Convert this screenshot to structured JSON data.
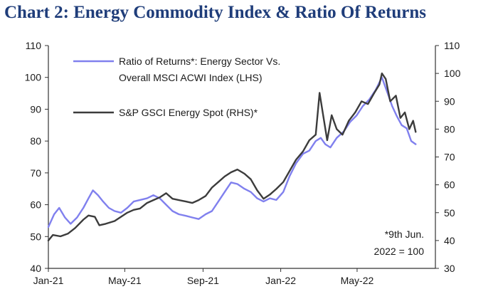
{
  "chart_data": {
    "type": "line",
    "title": "Chart 2: Energy Commodity Index & Ratio Of Returns",
    "xlabel": "",
    "ylabel_left": "",
    "ylabel_right": "",
    "x_ticks": [
      "Jan-21",
      "May-21",
      "Sep-21",
      "Jan-22",
      "May-22"
    ],
    "x_range": [
      "2021-01-01",
      "2022-09-01"
    ],
    "y_left_range": [
      40,
      110
    ],
    "y_left_ticks": [
      40,
      50,
      60,
      70,
      80,
      90,
      100,
      110
    ],
    "y_right_range": [
      30,
      110
    ],
    "y_right_ticks": [
      30,
      40,
      50,
      60,
      70,
      80,
      90,
      100,
      110
    ],
    "legend": {
      "placement": "top-left",
      "entries": [
        {
          "line1": "Ratio of Returns*: Energy Sector Vs.",
          "line2": "Overall MSCI ACWI Index (LHS)",
          "color": "#8080ee"
        },
        {
          "line1": "S&P GSCI Energy Spot (RHS)*",
          "line2": "",
          "color": "#3c3c3c"
        }
      ]
    },
    "note": {
      "line1": "*9th Jun.",
      "line2": "2022 = 100"
    },
    "grid": false,
    "series": [
      {
        "name": "Ratio of Returns*: Energy Sector Vs. Overall MSCI ACWI Index (LHS)",
        "axis": "left",
        "color": "#8080ee",
        "points": [
          [
            "2021-01-01",
            53
          ],
          [
            "2021-01-10",
            57
          ],
          [
            "2021-01-18",
            59
          ],
          [
            "2021-01-27",
            56
          ],
          [
            "2021-02-05",
            54
          ],
          [
            "2021-02-15",
            56
          ],
          [
            "2021-02-25",
            59
          ],
          [
            "2021-03-05",
            62
          ],
          [
            "2021-03-12",
            64.5
          ],
          [
            "2021-03-20",
            63
          ],
          [
            "2021-03-28",
            61
          ],
          [
            "2021-04-06",
            59
          ],
          [
            "2021-04-15",
            58
          ],
          [
            "2021-04-25",
            57.5
          ],
          [
            "2021-05-05",
            59
          ],
          [
            "2021-05-15",
            61
          ],
          [
            "2021-05-25",
            61.5
          ],
          [
            "2021-06-05",
            62
          ],
          [
            "2021-06-15",
            63
          ],
          [
            "2021-06-25",
            62
          ],
          [
            "2021-07-05",
            60
          ],
          [
            "2021-07-15",
            58
          ],
          [
            "2021-07-25",
            57
          ],
          [
            "2021-08-05",
            56.5
          ],
          [
            "2021-08-15",
            56
          ],
          [
            "2021-08-25",
            55.5
          ],
          [
            "2021-09-05",
            57
          ],
          [
            "2021-09-15",
            58
          ],
          [
            "2021-09-25",
            61
          ],
          [
            "2021-10-05",
            64
          ],
          [
            "2021-10-15",
            67
          ],
          [
            "2021-10-25",
            66.5
          ],
          [
            "2021-11-05",
            65
          ],
          [
            "2021-11-15",
            64
          ],
          [
            "2021-11-25",
            62
          ],
          [
            "2021-12-05",
            61
          ],
          [
            "2021-12-15",
            62
          ],
          [
            "2021-12-25",
            61.5
          ],
          [
            "2022-01-05",
            64
          ],
          [
            "2022-01-15",
            69
          ],
          [
            "2022-01-25",
            73
          ],
          [
            "2022-02-05",
            76
          ],
          [
            "2022-02-15",
            77
          ],
          [
            "2022-02-25",
            80
          ],
          [
            "2022-03-05",
            81
          ],
          [
            "2022-03-12",
            79
          ],
          [
            "2022-03-20",
            78
          ],
          [
            "2022-03-30",
            81
          ],
          [
            "2022-04-10",
            83
          ],
          [
            "2022-04-20",
            86
          ],
          [
            "2022-04-30",
            88
          ],
          [
            "2022-05-10",
            91
          ],
          [
            "2022-05-20",
            93
          ],
          [
            "2022-05-30",
            96
          ],
          [
            "2022-06-09",
            100
          ],
          [
            "2022-06-18",
            95
          ],
          [
            "2022-06-25",
            91
          ],
          [
            "2022-07-02",
            88
          ],
          [
            "2022-07-10",
            85
          ],
          [
            "2022-07-18",
            84
          ],
          [
            "2022-07-25",
            80
          ],
          [
            "2022-08-01",
            79
          ]
        ]
      },
      {
        "name": "S&P GSCI Energy Spot (RHS)*",
        "axis": "right",
        "color": "#3c3c3c",
        "points": [
          [
            "2021-01-01",
            40
          ],
          [
            "2021-01-08",
            42
          ],
          [
            "2021-01-20",
            41.5
          ],
          [
            "2021-02-01",
            42.5
          ],
          [
            "2021-02-12",
            44.5
          ],
          [
            "2021-02-25",
            47.5
          ],
          [
            "2021-03-05",
            49
          ],
          [
            "2021-03-15",
            48.5
          ],
          [
            "2021-03-22",
            45.5
          ],
          [
            "2021-04-01",
            46
          ],
          [
            "2021-04-15",
            47
          ],
          [
            "2021-04-25",
            48.5
          ],
          [
            "2021-05-05",
            50
          ],
          [
            "2021-05-15",
            51
          ],
          [
            "2021-05-25",
            51.5
          ],
          [
            "2021-06-05",
            53.5
          ],
          [
            "2021-06-15",
            54.5
          ],
          [
            "2021-06-25",
            55.5
          ],
          [
            "2021-07-05",
            57
          ],
          [
            "2021-07-15",
            55
          ],
          [
            "2021-07-25",
            54.5
          ],
          [
            "2021-08-05",
            54
          ],
          [
            "2021-08-15",
            53.5
          ],
          [
            "2021-08-25",
            54.5
          ],
          [
            "2021-09-05",
            56
          ],
          [
            "2021-09-15",
            59
          ],
          [
            "2021-09-25",
            61
          ],
          [
            "2021-10-05",
            63
          ],
          [
            "2021-10-15",
            64.5
          ],
          [
            "2021-10-25",
            65.5
          ],
          [
            "2021-11-05",
            64
          ],
          [
            "2021-11-15",
            62
          ],
          [
            "2021-11-25",
            58
          ],
          [
            "2021-12-05",
            55
          ],
          [
            "2021-12-15",
            56.5
          ],
          [
            "2021-12-25",
            58.5
          ],
          [
            "2022-01-05",
            61
          ],
          [
            "2022-01-15",
            65
          ],
          [
            "2022-01-25",
            69
          ],
          [
            "2022-02-05",
            72
          ],
          [
            "2022-02-15",
            76
          ],
          [
            "2022-02-25",
            78
          ],
          [
            "2022-03-03",
            93
          ],
          [
            "2022-03-08",
            86
          ],
          [
            "2022-03-15",
            76
          ],
          [
            "2022-03-22",
            85
          ],
          [
            "2022-03-30",
            80
          ],
          [
            "2022-04-08",
            78
          ],
          [
            "2022-04-18",
            83
          ],
          [
            "2022-04-28",
            86
          ],
          [
            "2022-05-08",
            90
          ],
          [
            "2022-05-18",
            89
          ],
          [
            "2022-05-28",
            93
          ],
          [
            "2022-06-05",
            96
          ],
          [
            "2022-06-09",
            100
          ],
          [
            "2022-06-15",
            98
          ],
          [
            "2022-06-22",
            90
          ],
          [
            "2022-07-01",
            92
          ],
          [
            "2022-07-08",
            84
          ],
          [
            "2022-07-15",
            86
          ],
          [
            "2022-07-22",
            80
          ],
          [
            "2022-07-28",
            83
          ],
          [
            "2022-08-01",
            79
          ]
        ]
      }
    ]
  }
}
